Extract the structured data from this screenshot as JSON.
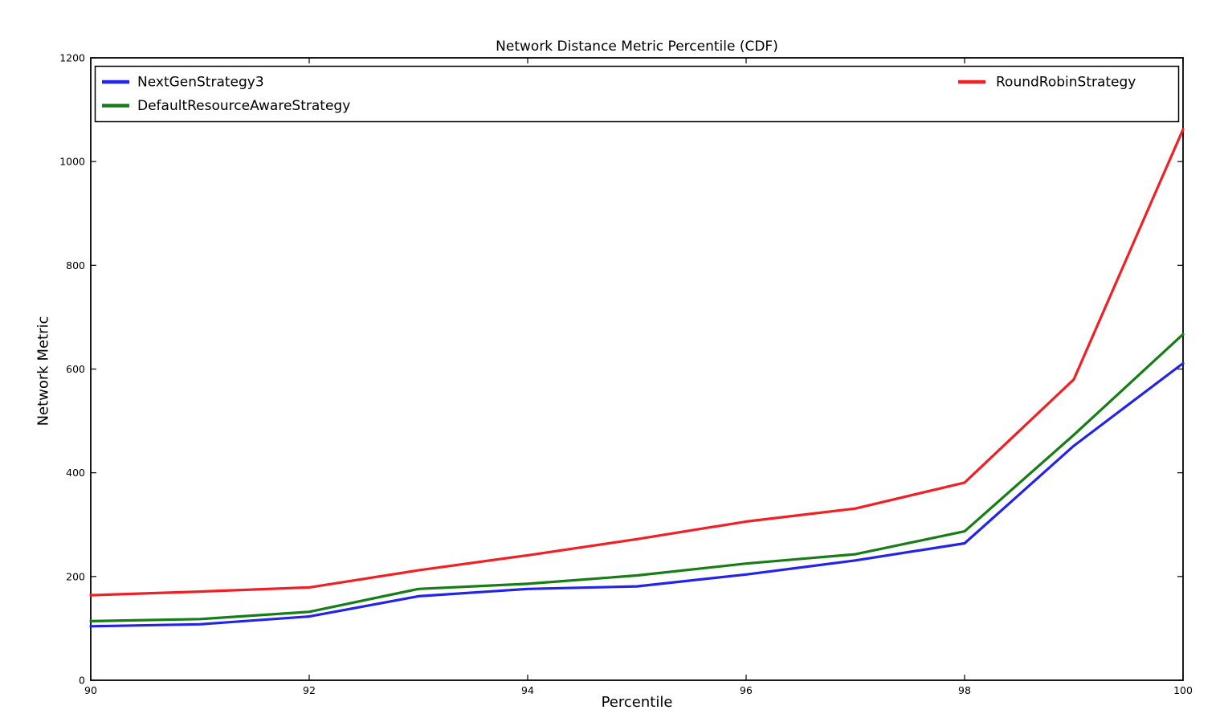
{
  "chart_data": {
    "type": "line",
    "title": "Network Distance Metric Percentile (CDF)",
    "xlabel": "Percentile",
    "ylabel": "Network Metric",
    "xlim": [
      90,
      100
    ],
    "ylim": [
      0,
      1200
    ],
    "x_ticks": [
      90,
      92,
      94,
      96,
      98,
      100
    ],
    "y_ticks": [
      0,
      200,
      400,
      600,
      800,
      1000,
      1200
    ],
    "grid": false,
    "background": "#ffffff",
    "frame_color": "#000000",
    "tick_direction": "in",
    "x": [
      90,
      91,
      92,
      93,
      94,
      95,
      96,
      97,
      98,
      99,
      100
    ],
    "series": [
      {
        "name": "NextGenStrategy3",
        "color": "#2424e8",
        "values": [
          104,
          108,
          123,
          162,
          176,
          181,
          204,
          231,
          264,
          452,
          611
        ]
      },
      {
        "name": "DefaultResourceAwareStrategy",
        "color": "#177d17",
        "values": [
          114,
          118,
          132,
          176,
          186,
          202,
          225,
          243,
          287,
          473,
          667
        ]
      },
      {
        "name": "RoundRobinStrategy",
        "color": "#f02025",
        "values": [
          164,
          171,
          179,
          212,
          241,
          272,
          306,
          331,
          381,
          580,
          1062
        ]
      }
    ],
    "legend": {
      "position": "top-inside-full-width",
      "columns": [
        [
          "NextGenStrategy3",
          "DefaultResourceAwareStrategy"
        ],
        [
          "RoundRobinStrategy"
        ]
      ]
    }
  }
}
